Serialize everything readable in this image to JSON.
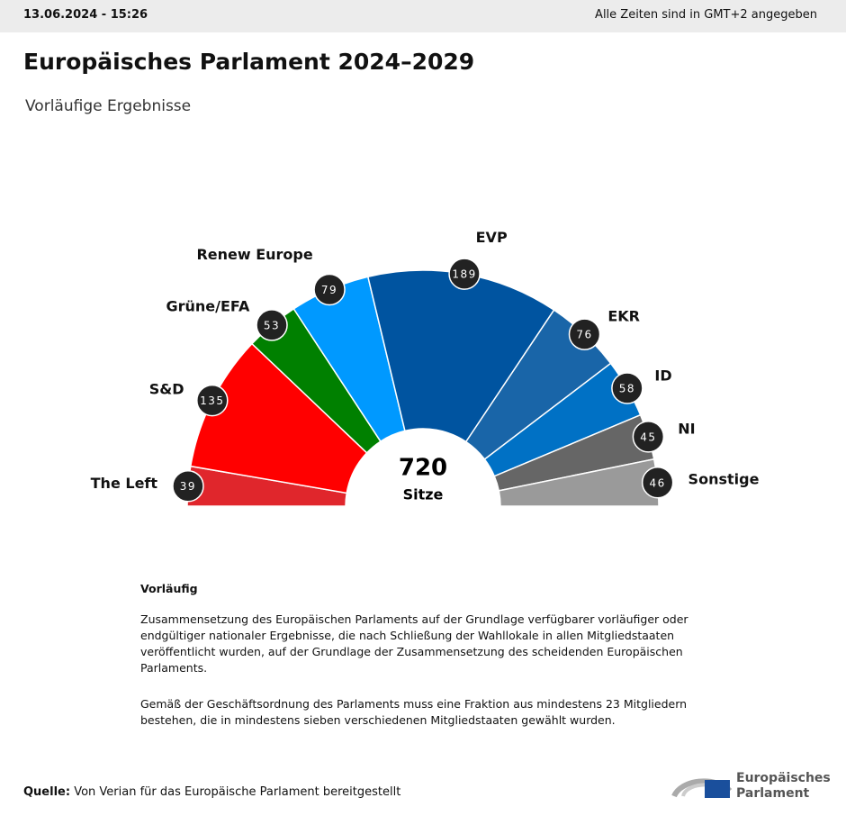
{
  "header": {
    "timestamp": "13.06.2024 - 15:26",
    "timezone_note": "Alle Zeiten sind in GMT+2 angegeben"
  },
  "chart_data": {
    "type": "hemicycle",
    "title": "Europäisches Parlament 2024–2029",
    "subtitle": "Vorläufige Ergebnisse",
    "categories": [
      "The Left",
      "S&D",
      "Grüne/EFA",
      "Renew Europe",
      "EVP",
      "EKR",
      "ID",
      "NI",
      "Sonstige"
    ],
    "values": [
      39,
      135,
      53,
      79,
      189,
      76,
      58,
      45,
      46
    ],
    "colors": [
      "#e0262c",
      "#ff0000",
      "#008000",
      "#0099ff",
      "#0054a0",
      "#1965a8",
      "#0071c5",
      "#666666",
      "#9a9a9a"
    ],
    "total": 720,
    "total_label": "Sitze"
  },
  "notes": {
    "heading": "Vorläufig",
    "paragraphs": [
      "Zusammensetzung des Europäischen Parlaments auf der Grundlage verfügbarer vorläufiger oder endgültiger nationaler Ergebnisse, die nach Schließung der Wahllokale in allen Mitgliedstaaten veröffentlicht wurden, auf der Grundlage der Zusammensetzung des scheidenden Europäischen Parlaments.",
      "Gemäß der Geschäftsordnung des Parlaments muss eine Fraktion aus mindestens 23 Mitgliedern bestehen, die in mindestens sieben verschiedenen Mitgliedstaaten gewählt wurden."
    ]
  },
  "footer": {
    "source_label": "Quelle:",
    "source_text": "Von Verian für das Europäische Parlament bereitgestellt",
    "logo_line1": "Europäisches",
    "logo_line2": "Parlament"
  }
}
